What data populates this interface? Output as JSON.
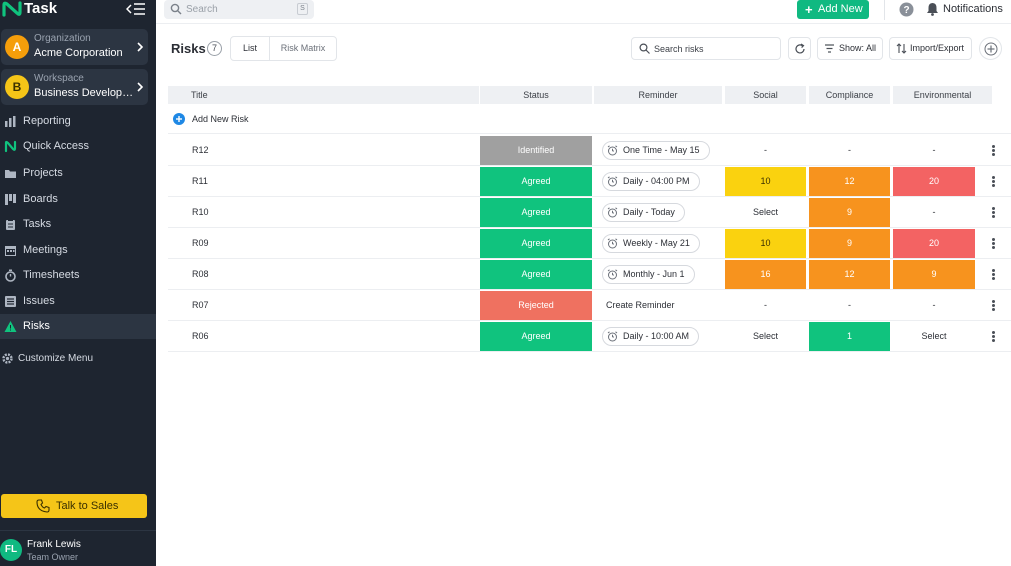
{
  "app": {
    "name": "Task"
  },
  "sidebar": {
    "organization": {
      "label": "Organization",
      "value": "Acme Corporation",
      "initial": "A",
      "color": "#f59e0b"
    },
    "workspace": {
      "label": "Workspace",
      "value": "Business Developm...",
      "initial": "B",
      "color": "#f5c518"
    },
    "items": [
      {
        "label": "Reporting",
        "icon": "bar-chart-icon"
      },
      {
        "label": "Quick Access",
        "icon": "logo-icon"
      },
      {
        "label": "Projects",
        "icon": "folder-icon"
      },
      {
        "label": "Boards",
        "icon": "board-icon"
      },
      {
        "label": "Tasks",
        "icon": "clipboard-icon"
      },
      {
        "label": "Meetings",
        "icon": "calendar-icon"
      },
      {
        "label": "Timesheets",
        "icon": "stopwatch-icon"
      },
      {
        "label": "Issues",
        "icon": "list-icon"
      },
      {
        "label": "Risks",
        "icon": "warning-icon",
        "active": true
      }
    ],
    "customize": "Customize Menu",
    "talk_to_sales": "Talk to Sales",
    "user": {
      "initials": "FL",
      "name": "Frank Lewis",
      "role": "Team Owner"
    }
  },
  "topbar": {
    "search_placeholder": "Search",
    "search_shortcut": "S",
    "add_new": "Add New",
    "notifications": "Notifications"
  },
  "page": {
    "title": "Risks",
    "count": "7",
    "tabs": {
      "list": "List",
      "matrix": "Risk Matrix"
    },
    "search_placeholder": "Search risks",
    "show_filter": "Show: All",
    "import_export": "Import/Export"
  },
  "table": {
    "columns": {
      "title": "Title",
      "status": "Status",
      "reminder": "Reminder",
      "social": "Social",
      "compliance": "Compliance",
      "environmental": "Environmental"
    },
    "add_new_risk": "Add New Risk",
    "rows": [
      {
        "title": "R12",
        "status": "Identified",
        "reminder": "One Time - May 15",
        "reminder_pill": true,
        "social": "-",
        "compliance": "-",
        "environmental": "-"
      },
      {
        "title": "R11",
        "status": "Agreed",
        "reminder": "Daily - 04:00 PM",
        "reminder_pill": true,
        "social": "10",
        "compliance": "12",
        "environmental": "20"
      },
      {
        "title": "R10",
        "status": "Agreed",
        "reminder": "Daily - Today",
        "reminder_pill": true,
        "social": "Select",
        "compliance": "9",
        "environmental": "-"
      },
      {
        "title": "R09",
        "status": "Agreed",
        "reminder": "Weekly - May 21",
        "reminder_pill": true,
        "social": "10",
        "compliance": "9",
        "environmental": "20"
      },
      {
        "title": "R08",
        "status": "Agreed",
        "reminder": "Monthly - Jun 1",
        "reminder_pill": true,
        "social": "16",
        "compliance": "12",
        "environmental": "9"
      },
      {
        "title": "R07",
        "status": "Rejected",
        "reminder": "Create Reminder",
        "reminder_pill": false,
        "social": "-",
        "compliance": "-",
        "environmental": "-"
      },
      {
        "title": "R06",
        "status": "Agreed",
        "reminder": "Daily - 10:00 AM",
        "reminder_pill": true,
        "social": "Select",
        "compliance": "1",
        "environmental": "Select"
      }
    ]
  },
  "colors": {
    "status": {
      "Identified": "#a0a0a0",
      "Agreed": "#10c37e",
      "Rejected": "#ef7160"
    },
    "score": {
      "1": "#10c37e",
      "9": "#f7931e",
      "10": "#fad20f",
      "12": "#f7931e",
      "16": "#f7931e",
      "20": "#f36363"
    }
  }
}
